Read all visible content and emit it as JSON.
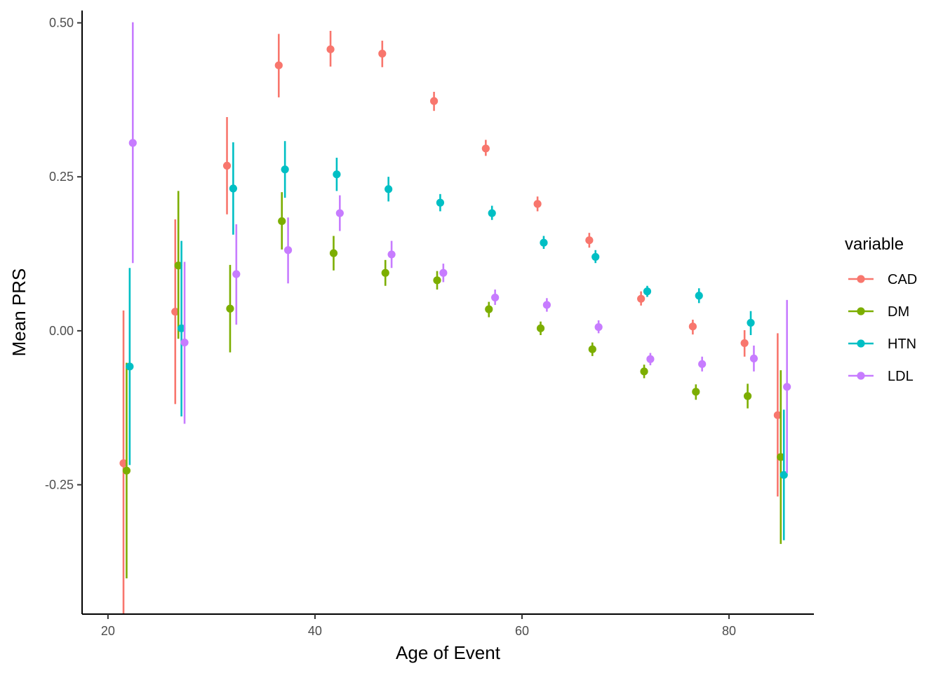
{
  "chart_data": {
    "type": "scatter",
    "xlabel": "Age of Event",
    "ylabel": "Mean PRS",
    "xlim": [
      17.5,
      88.2
    ],
    "ylim": [
      -0.46,
      0.52
    ],
    "x_ticks": [
      {
        "value": 20,
        "label": "20"
      },
      {
        "value": 40,
        "label": "40"
      },
      {
        "value": 60,
        "label": "60"
      },
      {
        "value": 80,
        "label": "80"
      }
    ],
    "y_ticks": [
      {
        "value": 0.5,
        "label": "0.50"
      },
      {
        "value": 0.25,
        "label": "0.25"
      },
      {
        "value": 0.0,
        "label": "0.00"
      },
      {
        "value": -0.25,
        "label": "-0.25"
      }
    ],
    "grid": false,
    "legend": {
      "title": "variable",
      "position": "right"
    },
    "error_bars": true,
    "series": [
      {
        "name": "CAD",
        "color": "#F8766D",
        "points": [
          {
            "x": 21.5,
            "y": -0.215,
            "lo": -0.47,
            "hi": 0.033
          },
          {
            "x": 26.5,
            "y": 0.031,
            "lo": -0.119,
            "hi": 0.181
          },
          {
            "x": 31.5,
            "y": 0.268,
            "lo": 0.189,
            "hi": 0.347
          },
          {
            "x": 36.5,
            "y": 0.431,
            "lo": 0.379,
            "hi": 0.482
          },
          {
            "x": 41.5,
            "y": 0.457,
            "lo": 0.429,
            "hi": 0.487
          },
          {
            "x": 46.5,
            "y": 0.45,
            "lo": 0.428,
            "hi": 0.471
          },
          {
            "x": 51.5,
            "y": 0.373,
            "lo": 0.357,
            "hi": 0.388
          },
          {
            "x": 56.5,
            "y": 0.296,
            "lo": 0.284,
            "hi": 0.31
          },
          {
            "x": 61.5,
            "y": 0.206,
            "lo": 0.194,
            "hi": 0.218
          },
          {
            "x": 66.5,
            "y": 0.147,
            "lo": 0.135,
            "hi": 0.159
          },
          {
            "x": 71.5,
            "y": 0.052,
            "lo": 0.041,
            "hi": 0.064
          },
          {
            "x": 76.5,
            "y": 0.007,
            "lo": -0.006,
            "hi": 0.018
          },
          {
            "x": 81.5,
            "y": -0.02,
            "lo": -0.042,
            "hi": 0.001
          },
          {
            "x": 84.7,
            "y": -0.137,
            "lo": -0.269,
            "hi": -0.004
          }
        ]
      },
      {
        "name": "DM",
        "color": "#7CAE00",
        "points": [
          {
            "x": 21.8,
            "y": -0.227,
            "lo": -0.402,
            "hi": -0.052
          },
          {
            "x": 26.8,
            "y": 0.106,
            "lo": -0.013,
            "hi": 0.227
          },
          {
            "x": 31.8,
            "y": 0.036,
            "lo": -0.035,
            "hi": 0.107
          },
          {
            "x": 36.8,
            "y": 0.178,
            "lo": 0.132,
            "hi": 0.225
          },
          {
            "x": 41.8,
            "y": 0.126,
            "lo": 0.098,
            "hi": 0.154
          },
          {
            "x": 46.8,
            "y": 0.094,
            "lo": 0.073,
            "hi": 0.115
          },
          {
            "x": 51.8,
            "y": 0.082,
            "lo": 0.067,
            "hi": 0.097
          },
          {
            "x": 56.8,
            "y": 0.035,
            "lo": 0.022,
            "hi": 0.047
          },
          {
            "x": 61.8,
            "y": 0.004,
            "lo": -0.007,
            "hi": 0.015
          },
          {
            "x": 66.8,
            "y": -0.03,
            "lo": -0.041,
            "hi": -0.019
          },
          {
            "x": 71.8,
            "y": -0.066,
            "lo": -0.077,
            "hi": -0.055
          },
          {
            "x": 76.8,
            "y": -0.099,
            "lo": -0.112,
            "hi": -0.087
          },
          {
            "x": 81.8,
            "y": -0.106,
            "lo": -0.126,
            "hi": -0.086
          },
          {
            "x": 85.0,
            "y": -0.205,
            "lo": -0.346,
            "hi": -0.064
          }
        ]
      },
      {
        "name": "HTN",
        "color": "#00BFC4",
        "points": [
          {
            "x": 22.1,
            "y": -0.058,
            "lo": -0.218,
            "hi": 0.102
          },
          {
            "x": 27.1,
            "y": 0.004,
            "lo": -0.139,
            "hi": 0.146
          },
          {
            "x": 32.1,
            "y": 0.231,
            "lo": 0.156,
            "hi": 0.306
          },
          {
            "x": 37.1,
            "y": 0.262,
            "lo": 0.216,
            "hi": 0.308
          },
          {
            "x": 42.1,
            "y": 0.254,
            "lo": 0.227,
            "hi": 0.281
          },
          {
            "x": 47.1,
            "y": 0.23,
            "lo": 0.21,
            "hi": 0.25
          },
          {
            "x": 52.1,
            "y": 0.208,
            "lo": 0.194,
            "hi": 0.222
          },
          {
            "x": 57.1,
            "y": 0.191,
            "lo": 0.18,
            "hi": 0.203
          },
          {
            "x": 62.1,
            "y": 0.143,
            "lo": 0.133,
            "hi": 0.154
          },
          {
            "x": 67.1,
            "y": 0.12,
            "lo": 0.11,
            "hi": 0.131
          },
          {
            "x": 72.1,
            "y": 0.064,
            "lo": 0.055,
            "hi": 0.073
          },
          {
            "x": 77.1,
            "y": 0.057,
            "lo": 0.045,
            "hi": 0.069
          },
          {
            "x": 82.1,
            "y": 0.013,
            "lo": -0.007,
            "hi": 0.032
          },
          {
            "x": 85.3,
            "y": -0.234,
            "lo": -0.34,
            "hi": -0.128
          }
        ]
      },
      {
        "name": "LDL",
        "color": "#C77CFF",
        "points": [
          {
            "x": 22.4,
            "y": 0.305,
            "lo": 0.11,
            "hi": 0.501
          },
          {
            "x": 27.4,
            "y": -0.019,
            "lo": -0.151,
            "hi": 0.112
          },
          {
            "x": 32.4,
            "y": 0.092,
            "lo": 0.01,
            "hi": 0.173
          },
          {
            "x": 37.4,
            "y": 0.131,
            "lo": 0.077,
            "hi": 0.184
          },
          {
            "x": 42.4,
            "y": 0.191,
            "lo": 0.162,
            "hi": 0.22
          },
          {
            "x": 47.4,
            "y": 0.124,
            "lo": 0.102,
            "hi": 0.146
          },
          {
            "x": 52.4,
            "y": 0.094,
            "lo": 0.079,
            "hi": 0.109
          },
          {
            "x": 57.4,
            "y": 0.054,
            "lo": 0.042,
            "hi": 0.067
          },
          {
            "x": 62.4,
            "y": 0.042,
            "lo": 0.031,
            "hi": 0.053
          },
          {
            "x": 67.4,
            "y": 0.006,
            "lo": -0.004,
            "hi": 0.017
          },
          {
            "x": 72.4,
            "y": -0.046,
            "lo": -0.056,
            "hi": -0.036
          },
          {
            "x": 77.4,
            "y": -0.054,
            "lo": -0.066,
            "hi": -0.042
          },
          {
            "x": 82.4,
            "y": -0.045,
            "lo": -0.066,
            "hi": -0.024
          },
          {
            "x": 85.6,
            "y": -0.091,
            "lo": -0.231,
            "hi": 0.05
          }
        ]
      }
    ]
  }
}
